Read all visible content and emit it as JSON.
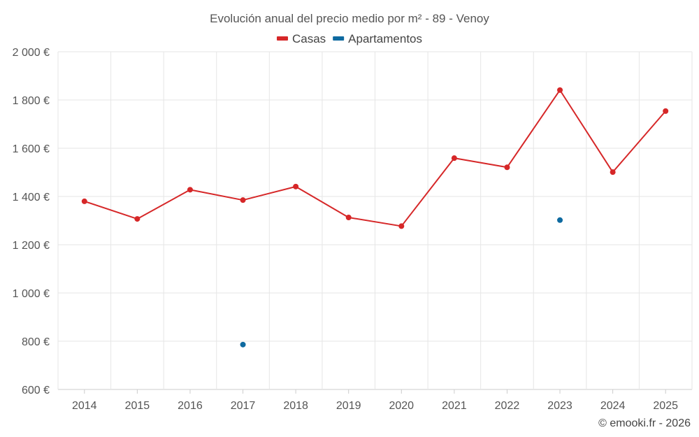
{
  "chart_data": {
    "type": "line",
    "title": "Evolución anual del precio medio por m² - 89 - Venoy",
    "categories": [
      "2014",
      "2015",
      "2016",
      "2017",
      "2018",
      "2019",
      "2020",
      "2021",
      "2022",
      "2023",
      "2024",
      "2025"
    ],
    "y_ticks": [
      600,
      800,
      1000,
      1200,
      1400,
      1600,
      1800,
      2000
    ],
    "y_tick_labels": [
      "600 €",
      "800 €",
      "1 000 €",
      "1 200 €",
      "1 400 €",
      "1 600 €",
      "1 800 €",
      "2 000 €"
    ],
    "ylim": [
      600,
      2000
    ],
    "xlabel": "",
    "ylabel": "",
    "grid": true,
    "legend_position": "top-center",
    "series": [
      {
        "name": "Casas",
        "color": "#d62728",
        "values": [
          1380,
          1307,
          1428,
          1385,
          1441,
          1313,
          1277,
          1559,
          1521,
          1841,
          1501,
          1754
        ]
      },
      {
        "name": "Apartamentos",
        "color": "#0e6aa0",
        "values": [
          null,
          null,
          null,
          786,
          null,
          null,
          null,
          null,
          null,
          1302,
          null,
          null
        ]
      }
    ]
  },
  "credit": "© emooki.fr - 2026"
}
